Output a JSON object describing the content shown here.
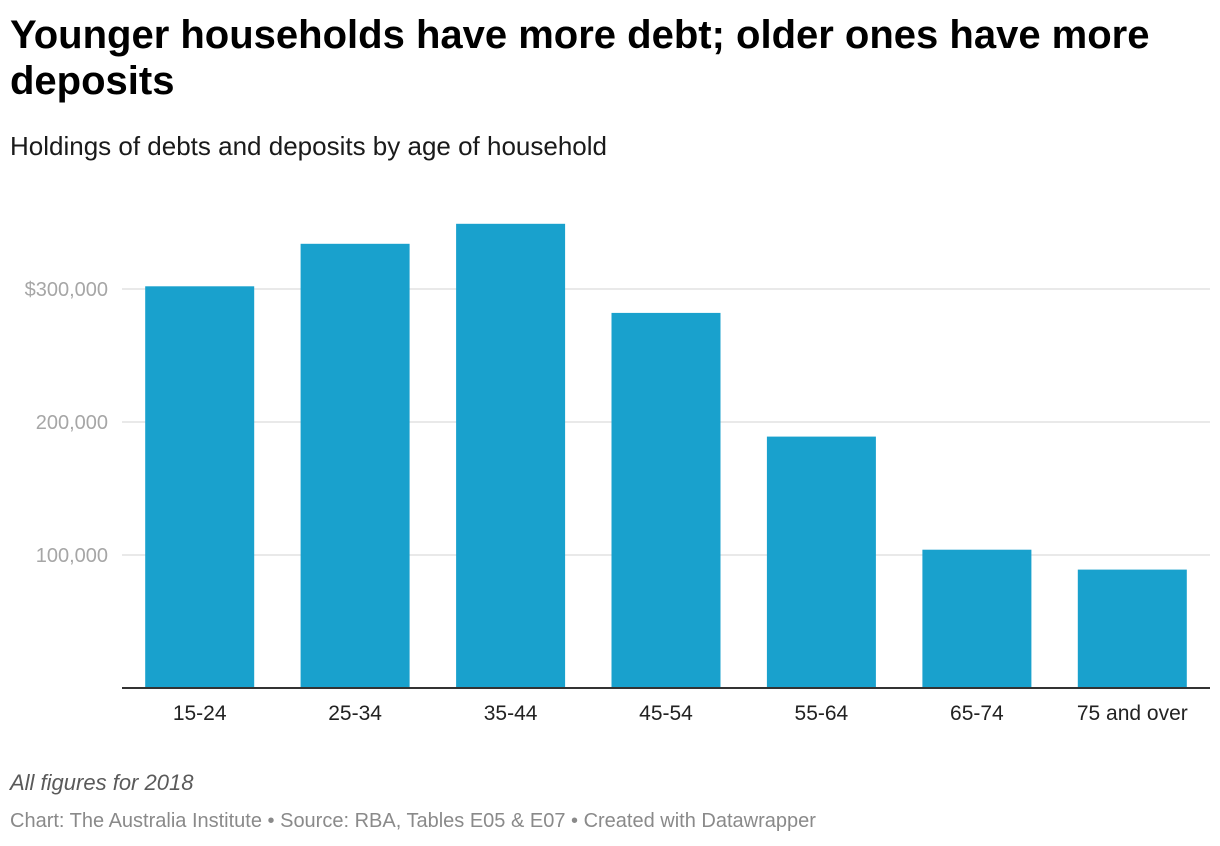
{
  "title": "Younger households have more debt; older ones have more deposits",
  "subtitle": "Holdings of debts and deposits by age of household",
  "notes": "All figures for 2018",
  "byline": "Chart: The Australia Institute • Source: RBA, Tables E05 & E07 • Created with Datawrapper",
  "colors": {
    "bar": "#19a1cd",
    "grid": "#e2e2e2",
    "axis": "#333333"
  },
  "chart_data": {
    "type": "bar",
    "categories": [
      "15-24",
      "25-34",
      "35-44",
      "45-54",
      "55-64",
      "65-74",
      "75 and over"
    ],
    "values": [
      302000,
      334000,
      349000,
      282000,
      189000,
      104000,
      89000
    ],
    "y_ticks": [
      {
        "value": 100000,
        "label": "100,000"
      },
      {
        "value": 200000,
        "label": "200,000"
      },
      {
        "value": 300000,
        "label": "$300,000"
      }
    ],
    "ylim": [
      0,
      360000
    ],
    "xlabel": "",
    "ylabel": "",
    "grid": true,
    "legend": "none"
  }
}
